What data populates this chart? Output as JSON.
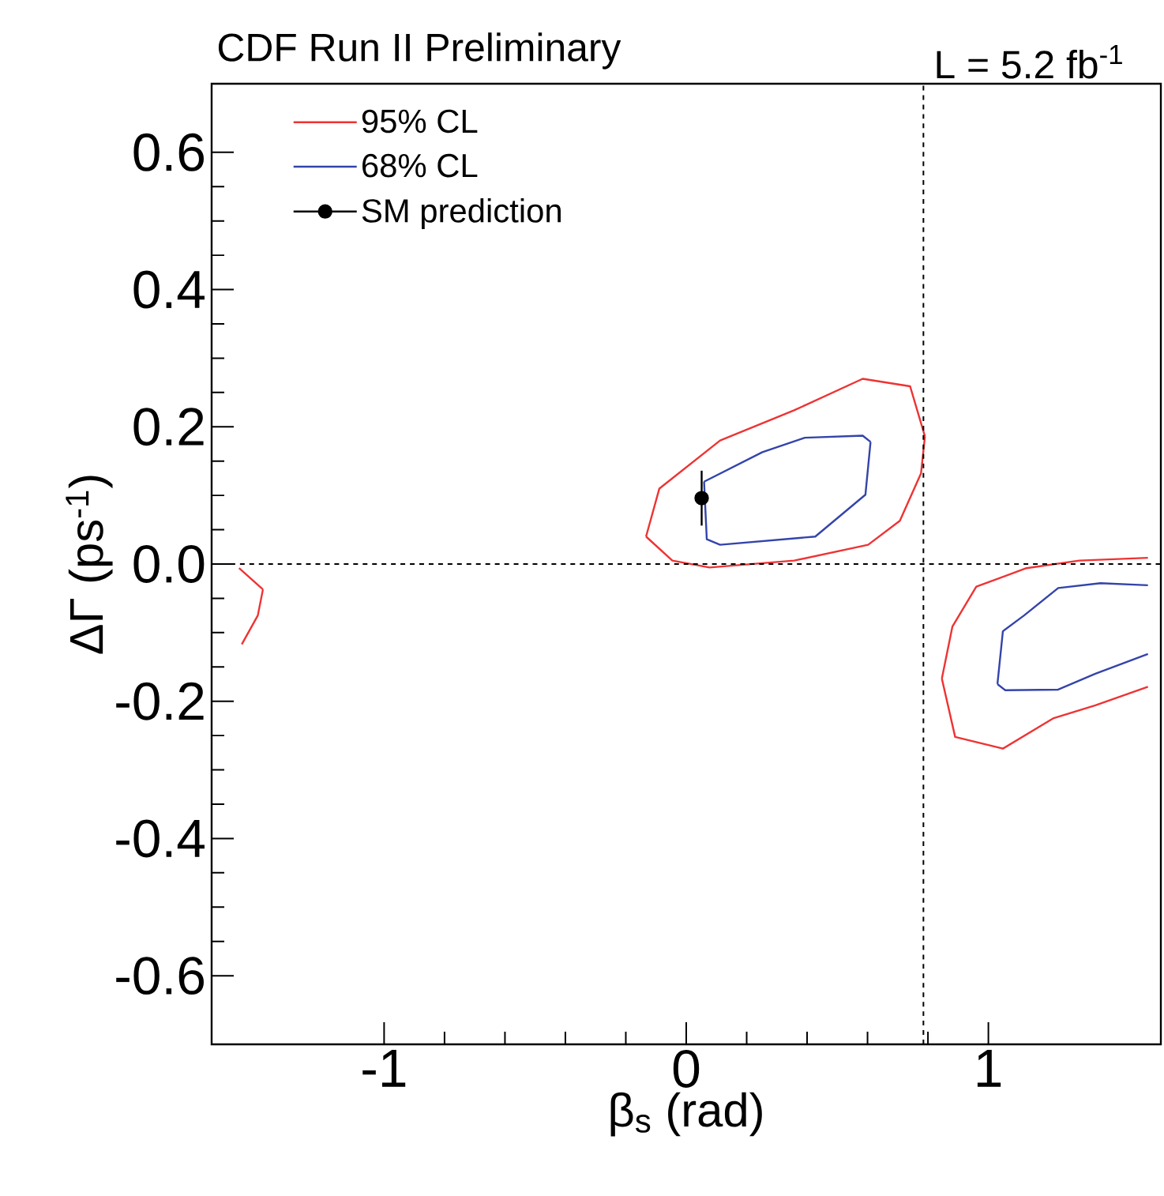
{
  "chart_data": {
    "type": "line",
    "title": "CDF Run II Preliminary",
    "annotations": [
      "L = 5.2 fb$^{-1}$"
    ],
    "xlabel": "β$_{s}$ (rad)",
    "ylabel": "ΔΓ (ps$^{-1}$)",
    "xlim": [
      -1.5708,
      1.5708
    ],
    "ylim": [
      -0.7,
      0.7
    ],
    "xticks": [
      -1,
      0,
      1
    ],
    "yticks": [
      -0.6,
      -0.4,
      -0.2,
      {
        "value": 0,
        "label": "0.0"
      },
      0.2,
      0.4,
      0.6
    ],
    "legend": "top left",
    "series": [
      {
        "name": "95% CL",
        "color": "#ee3333",
        "x": [
          -0.133,
          -0.089,
          0.112,
          0.357,
          0.584,
          0.741,
          0.79,
          null,
          -0.133,
          -0.046,
          0.077,
          0.357,
          0.602,
          0.707,
          0.777,
          0.79
        ],
        "values": [
          0.04,
          0.11,
          0.18,
          0.224,
          0.27,
          0.259,
          0.186,
          null,
          0.04,
          0.005,
          -0.005,
          0.005,
          0.028,
          0.063,
          0.132,
          0.186
        ]
      },
      {
        "name": "68% CL",
        "color": "#3344aa",
        "x": [
          0.059,
          0.252,
          0.392,
          0.584,
          0.61,
          null,
          0.059,
          0.068,
          0.112,
          0.427,
          0.593,
          0.61
        ],
        "values": [
          0.12,
          0.163,
          0.184,
          0.187,
          0.178,
          null,
          0.12,
          0.036,
          0.028,
          0.04,
          0.101,
          0.178
        ]
      },
      {
        "type": "scatter",
        "name": "SM prediction",
        "color": "#000000",
        "marker": "circle",
        "x": [
          0.051
        ],
        "values": [
          0.096
        ],
        "errors": [
          0.04
        ]
      },
      {
        "color": "#ee3333",
        "x": [
          0.846,
          0.881,
          0.96,
          1.126,
          1.301,
          1.528,
          null,
          0.846,
          0.89,
          1.048,
          1.214,
          1.354,
          1.528
        ],
        "values": [
          -0.167,
          -0.091,
          -0.033,
          -0.006,
          0.005,
          0.009,
          null,
          -0.167,
          -0.252,
          -0.269,
          -0.225,
          -0.206,
          -0.179
        ]
      },
      {
        "color": "#3344aa",
        "x": [
          1.03,
          1.048,
          1.118,
          1.231,
          1.371,
          1.528,
          null,
          1.03,
          1.056,
          1.231,
          1.354,
          1.528
        ],
        "values": [
          -0.175,
          -0.098,
          -0.075,
          -0.035,
          -0.028,
          -0.031,
          null,
          -0.175,
          -0.184,
          -0.183,
          -0.16,
          -0.131
        ]
      },
      {
        "color": "#ee3333",
        "x": [
          -1.48,
          -1.401,
          null,
          -1.471,
          -1.418,
          -1.401
        ],
        "values": [
          -0.006,
          -0.037,
          null,
          -0.117,
          -0.075,
          -0.037
        ]
      }
    ],
    "ref_lines": [
      {
        "axis": "x",
        "value": 0.785,
        "line_style": "dashed",
        "color": "#000000"
      },
      {
        "axis": "y",
        "value": 0,
        "line_style": "dashed",
        "color": "#000000"
      }
    ]
  }
}
